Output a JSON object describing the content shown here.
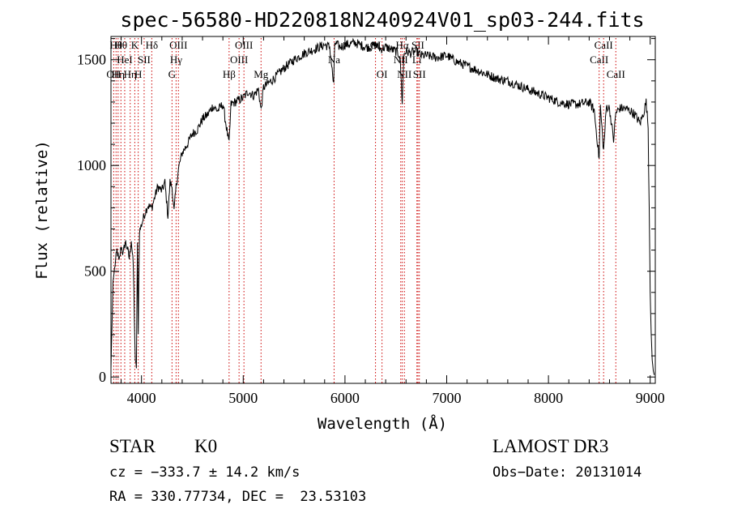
{
  "chart_data": {
    "type": "line",
    "title": "spec-56580-HD220818N240924V01_sp03-244.fits",
    "xlabel": "Wavelength (Å)",
    "ylabel": "Flux (relative)",
    "xlim": [
      3700,
      9050
    ],
    "ylim": [
      -30,
      1610
    ],
    "xticks": [
      4000,
      5000,
      6000,
      7000,
      8000,
      9000
    ],
    "yticks": [
      0,
      500,
      1000,
      1500
    ],
    "grid": false,
    "series": [
      {
        "x": [
          3700,
          3720,
          3740,
          3760,
          3780,
          3800,
          3820,
          3840,
          3860,
          3880,
          3900,
          3920,
          3930,
          3940,
          3950,
          3960,
          3968,
          3980,
          4000,
          4030,
          4060,
          4101,
          4130,
          4160,
          4200,
          4230,
          4260,
          4280,
          4300,
          4320,
          4340,
          4370,
          4400,
          4450,
          4500,
          4550,
          4600,
          4650,
          4700,
          4750,
          4800,
          4861,
          4880,
          4920,
          4960,
          5000,
          5050,
          5100,
          5150,
          5175,
          5200,
          5250,
          5300,
          5400,
          5500,
          5600,
          5700,
          5800,
          5850,
          5889,
          5900,
          5950,
          6000,
          6050,
          6100,
          6150,
          6200,
          6250,
          6300,
          6350,
          6400,
          6450,
          6500,
          6540,
          6563,
          6580,
          6600,
          6650,
          6700,
          6750,
          6800,
          6900,
          7000,
          7100,
          7200,
          7300,
          7400,
          7500,
          7600,
          7700,
          7800,
          7900,
          8000,
          8100,
          8200,
          8300,
          8400,
          8450,
          8498,
          8510,
          8542,
          8570,
          8600,
          8640,
          8662,
          8700,
          8750,
          8800,
          8850,
          8900,
          8930,
          8950,
          8960,
          8980,
          8990,
          9000,
          9010,
          9020,
          9030,
          9040
        ],
        "values": [
          40,
          450,
          530,
          600,
          540,
          620,
          580,
          640,
          610,
          560,
          650,
          520,
          280,
          60,
          50,
          620,
          220,
          690,
          720,
          770,
          810,
          800,
          850,
          900,
          880,
          920,
          760,
          920,
          900,
          780,
          900,
          1000,
          1060,
          1100,
          1150,
          1170,
          1220,
          1240,
          1280,
          1260,
          1290,
          1100,
          1290,
          1300,
          1310,
          1320,
          1350,
          1330,
          1360,
          1260,
          1370,
          1390,
          1410,
          1460,
          1500,
          1530,
          1550,
          1570,
          1560,
          1380,
          1580,
          1560,
          1570,
          1575,
          1580,
          1570,
          1560,
          1560,
          1570,
          1550,
          1560,
          1550,
          1540,
          1520,
          1300,
          1530,
          1540,
          1530,
          1540,
          1520,
          1520,
          1510,
          1520,
          1490,
          1470,
          1450,
          1430,
          1410,
          1400,
          1380,
          1360,
          1340,
          1320,
          1300,
          1290,
          1290,
          1300,
          1260,
          1030,
          1280,
          1070,
          1280,
          1270,
          1120,
          1250,
          1270,
          1270,
          1260,
          1240,
          1200,
          1240,
          1280,
          1300,
          1180,
          800,
          400,
          200,
          80,
          30,
          10
        ]
      }
    ],
    "line_markers": [
      {
        "w": 3727,
        "label": "OII",
        "row": 3
      },
      {
        "w": 3750,
        "label": "Hθ",
        "row": 1
      },
      {
        "w": 3770,
        "label": "Hη",
        "row": 3
      },
      {
        "w": 3798,
        "label": "Hθ",
        "row": 1
      },
      {
        "w": 3835,
        "label": "HeI",
        "row": 2
      },
      {
        "w": 3889,
        "label": "Hη",
        "row": 3
      },
      {
        "w": 3934,
        "label": "K",
        "row": 1
      },
      {
        "w": 3968,
        "label": "H",
        "row": 3
      },
      {
        "w": 4026,
        "label": "SII",
        "row": 2
      },
      {
        "w": 4101,
        "label": "Hδ",
        "row": 1
      },
      {
        "w": 4300,
        "label": "G",
        "row": 3
      },
      {
        "w": 4340,
        "label": "Hγ",
        "row": 2
      },
      {
        "w": 4363,
        "label": "OIII",
        "row": 1
      },
      {
        "w": 4861,
        "label": "Hβ",
        "row": 3
      },
      {
        "w": 4959,
        "label": "OIII",
        "row": 2
      },
      {
        "w": 5007,
        "label": "OIII",
        "row": 1
      },
      {
        "w": 5175,
        "label": "Mg",
        "row": 3
      },
      {
        "w": 5893,
        "label": "Na",
        "row": 2
      },
      {
        "w": 6300,
        "label": "OI",
        "row": 1
      },
      {
        "w": 6364,
        "label": "OI",
        "row": 3
      },
      {
        "w": 6548,
        "label": "NII",
        "row": 2
      },
      {
        "w": 6563,
        "label": "Hα",
        "row": 1
      },
      {
        "w": 6584,
        "label": "NII",
        "row": 3
      },
      {
        "w": 6707,
        "label": "Li",
        "row": 2
      },
      {
        "w": 6717,
        "label": "SII",
        "row": 1
      },
      {
        "w": 6731,
        "label": "SII",
        "row": 3
      },
      {
        "w": 8498,
        "label": "CaII",
        "row": 2
      },
      {
        "w": 8542,
        "label": "CaII",
        "row": 1
      },
      {
        "w": 8662,
        "label": "CaII",
        "row": 3
      }
    ]
  },
  "info": {
    "class_label": "STAR",
    "subclass": "K0",
    "survey": "LAMOST DR3",
    "cz": "cz = −333.7 ± 14.2 km/s",
    "obs_date": "Obs−Date: 20131014",
    "coords": "RA = 330.77734, DEC =  23.53103"
  }
}
